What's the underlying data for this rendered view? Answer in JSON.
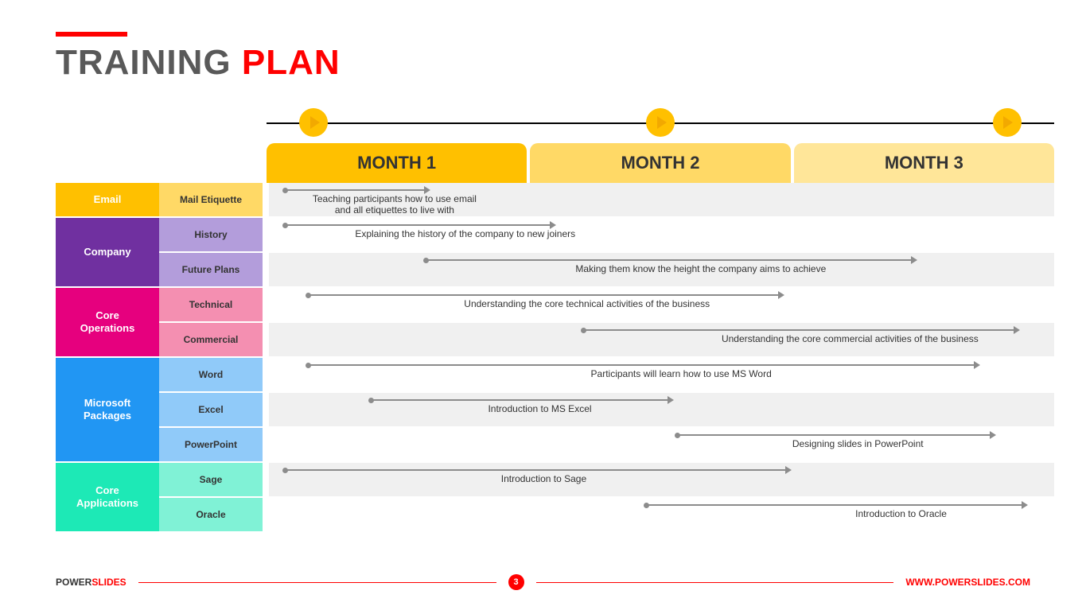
{
  "title": {
    "part1": "TRAINING",
    "part2": "PLAN"
  },
  "months": [
    {
      "label": "MONTH 1",
      "bg": "#ffc000"
    },
    {
      "label": "MONTH 2",
      "bg": "#ffd966"
    },
    {
      "label": "MONTH 3",
      "bg": "#ffe699"
    }
  ],
  "play_circles": {
    "color": "#ffc000",
    "positions_pct": [
      6,
      50,
      94
    ]
  },
  "categories": [
    {
      "name": "Email",
      "bg": "#ffc000",
      "light": "#ffd966",
      "rows": 1,
      "subs": [
        {
          "label": "Mail Etiquette",
          "alt": true,
          "bar": {
            "left_pct": 2,
            "width_pct": 18
          },
          "text": "Teaching participants how to use email\nand all etiquettes to live with",
          "text_left_pct": 2,
          "text_width_pct": 28
        }
      ]
    },
    {
      "name": "Company",
      "bg": "#7030a0",
      "light": "#b39ddb",
      "rows": 2,
      "subs": [
        {
          "label": "History",
          "alt": false,
          "bar": {
            "left_pct": 2,
            "width_pct": 34
          },
          "text": "Explaining the history of the company to new joiners",
          "text_left_pct": 6,
          "text_width_pct": 38
        },
        {
          "label": "Future Plans",
          "alt": true,
          "bar": {
            "left_pct": 20,
            "width_pct": 62
          },
          "text": "Making them know the height the company aims to achieve",
          "text_left_pct": 30,
          "text_width_pct": 50
        }
      ]
    },
    {
      "name": "Core Operations",
      "bg": "#e6007e",
      "light": "#f48fb1",
      "rows": 2,
      "subs": [
        {
          "label": "Technical",
          "alt": false,
          "bar": {
            "left_pct": 5,
            "width_pct": 60
          },
          "text": "Understanding the core technical activities of the business",
          "text_left_pct": 18,
          "text_width_pct": 45
        },
        {
          "label": "Commercial",
          "alt": true,
          "bar": {
            "left_pct": 40,
            "width_pct": 55
          },
          "text": "Understanding the core commercial activities of the business",
          "text_left_pct": 50,
          "text_width_pct": 48
        }
      ]
    },
    {
      "name": "Microsoft Packages",
      "bg": "#2196f3",
      "light": "#90caf9",
      "rows": 3,
      "subs": [
        {
          "label": "Word",
          "alt": false,
          "bar": {
            "left_pct": 5,
            "width_pct": 85
          },
          "text": "Participants will learn how to use MS Word",
          "text_left_pct": 35,
          "text_width_pct": 35
        },
        {
          "label": "Excel",
          "alt": true,
          "bar": {
            "left_pct": 13,
            "width_pct": 38
          },
          "text": "Introduction to MS Excel",
          "text_left_pct": 22,
          "text_width_pct": 25
        },
        {
          "label": "PowerPoint",
          "alt": false,
          "bar": {
            "left_pct": 52,
            "width_pct": 40
          },
          "text": "Designing slides in PowerPoint",
          "text_left_pct": 60,
          "text_width_pct": 30
        }
      ]
    },
    {
      "name": "Core Applications",
      "bg": "#1de9b6",
      "light": "#80f2d6",
      "rows": 2,
      "subs": [
        {
          "label": "Sage",
          "alt": true,
          "bar": {
            "left_pct": 2,
            "width_pct": 64
          },
          "text": "Introduction to Sage",
          "text_left_pct": 25,
          "text_width_pct": 20
        },
        {
          "label": "Oracle",
          "alt": false,
          "bar": {
            "left_pct": 48,
            "width_pct": 48
          },
          "text": "Introduction to Oracle",
          "text_left_pct": 68,
          "text_width_pct": 25
        }
      ]
    }
  ],
  "footer": {
    "brand1": "POWER",
    "brand2": "SLIDES",
    "page": "3",
    "url": "WWW.POWERSLIDES.COM"
  },
  "colors": {
    "accent_red": "#ff0000",
    "text_gray": "#595959",
    "bar_gray": "#8c8c8c",
    "row_alt_bg": "#f0f0f0"
  }
}
